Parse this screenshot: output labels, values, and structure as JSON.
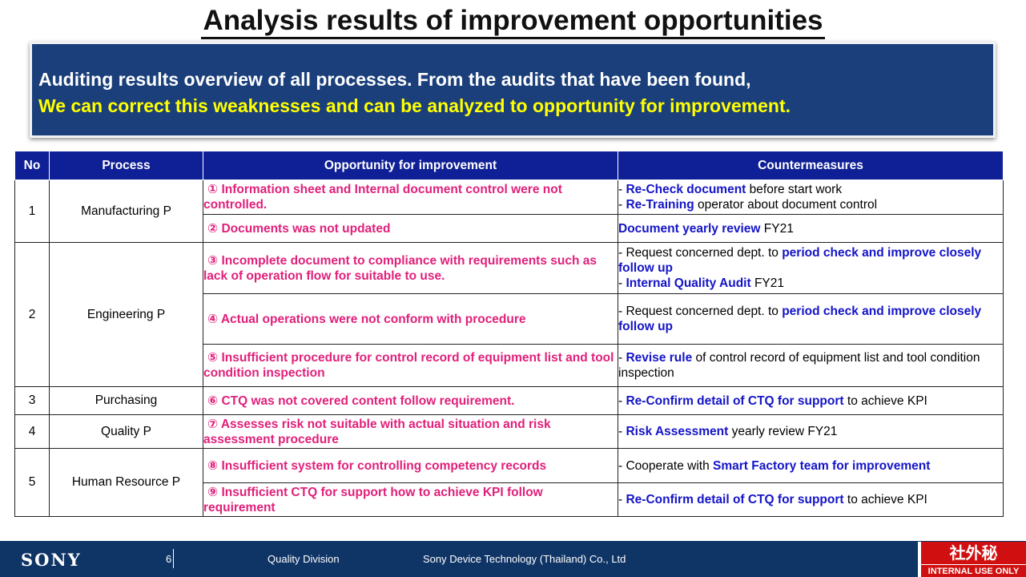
{
  "title": "Analysis results of improvement opportunities",
  "banner": {
    "line1": "Auditing results overview of all processes. From the audits that have been found,",
    "line2": "We can correct this weaknesses and can be analyzed to  opportunity for improvement."
  },
  "table": {
    "headers": [
      "No",
      "Process",
      "Opportunity for improvement",
      "Countermeasures"
    ],
    "groups": [
      {
        "no": "1",
        "process": "Manufacturing P"
      },
      {
        "no": "2",
        "process": "Engineering P"
      },
      {
        "no": "3",
        "process": "Purchasing"
      },
      {
        "no": "4",
        "process": "Quality P"
      },
      {
        "no": "5",
        "process": "Human Resource P"
      }
    ],
    "opportunities": [
      {
        "num": "①",
        "text": "Information sheet and Internal document control were not controlled."
      },
      {
        "num": "②",
        "text": "Documents was not updated"
      },
      {
        "num": "③",
        "text": "Incomplete document to compliance with requirements such as lack of operation flow for suitable to use."
      },
      {
        "num": "④",
        "text": "Actual operations were not conform with procedure"
      },
      {
        "num": "⑤",
        "text": "Insufficient procedure for control record of equipment list and tool condition inspection"
      },
      {
        "num": "⑥",
        "text": "CTQ was not covered content follow requirement."
      },
      {
        "num": "⑦",
        "text": "Assesses risk not suitable with actual situation and risk assessment procedure"
      },
      {
        "num": "⑧",
        "text": "Insufficient system for controlling competency records"
      },
      {
        "num": "⑨",
        "text": "Insufficient CTQ for support how to achieve KPI follow requirement"
      }
    ],
    "countermeasures": {
      "r1a_b": "Re-Check document",
      "r1a_t": " before start work",
      "r1b_b": "Re-Training",
      "r1b_t": " operator about document control",
      "r2_b": "Document yearly review",
      "r2_t": " FY21",
      "r3a_t": "Request concerned dept. to ",
      "r3a_b": "period check and improve closely follow up",
      "r3b_b": "Internal Quality Audit",
      "r3b_t": " FY21",
      "r4_t": "Request concerned dept. to ",
      "r4_b": "period check and improve closely follow up",
      "r5_b": "Revise rule",
      "r5_t": " of control record of equipment list and tool condition inspection",
      "r6_b": "Re-Confirm detail of CTQ for support",
      "r6_t": " to achieve KPI",
      "r7_b": "Risk Assessment",
      "r7_t": " yearly review FY21",
      "r8_t": "Cooperate with ",
      "r8_b": "Smart Factory team for improvement",
      "r9_b": "Re-Confirm detail of CTQ for support",
      "r9_t": " to achieve KPI"
    }
  },
  "footer": {
    "brand": "SONY",
    "page_number": "6",
    "division": "Quality Division",
    "company": "Sony Device Technology (Thailand) Co., Ltd",
    "confidential_jp": "社外秘",
    "confidential_en": "INTERNAL USE ONLY"
  },
  "colors": {
    "banner_bg": "#1a3f7a",
    "banner_highlight": "#ffff00",
    "header_bg": "#0f1f96",
    "opportunity_text": "#e0207a",
    "countermeasure_bold": "#1414c8",
    "footer_bg": "#0f3466",
    "confidential_bg": "#d01010"
  }
}
